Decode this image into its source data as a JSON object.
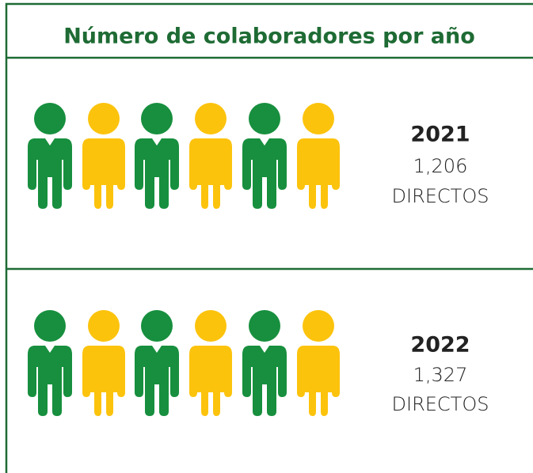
{
  "title": "Número de colaboradores por año",
  "rows": [
    {
      "year": "2021",
      "value": "1,206",
      "label": "DIRECTOS"
    },
    {
      "year": "2022",
      "value": "1,327",
      "label": "DIRECTOS"
    }
  ]
}
